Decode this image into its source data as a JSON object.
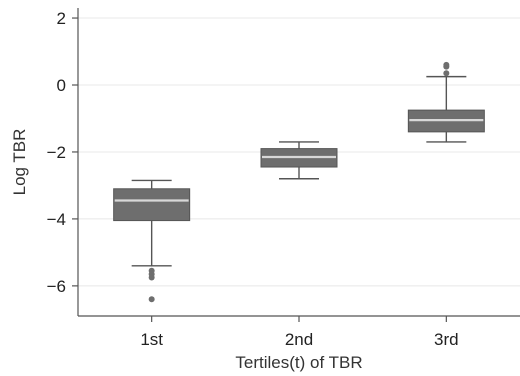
{
  "chart_data": {
    "type": "box",
    "xlabel": "Tertiles(t) of TBR",
    "ylabel": "Log TBR",
    "ylim": [
      -6.9,
      2.3
    ],
    "yticks": [
      2,
      0,
      -2,
      -4,
      -6
    ],
    "ytick_labels": [
      "2",
      "0",
      "−2",
      "−4",
      "−6"
    ],
    "grid": true,
    "categories": [
      "1st",
      "2nd",
      "3rd"
    ],
    "box_color": "#6e6e6e",
    "median_color": "#d8d8d8",
    "boxes": [
      {
        "category": "1st",
        "whisker_low": -5.4,
        "q1": -4.05,
        "median": -3.45,
        "q3": -3.1,
        "whisker_high": -2.85,
        "outliers": [
          -5.55,
          -5.65,
          -5.75,
          -6.4
        ]
      },
      {
        "category": "2nd",
        "whisker_low": -2.8,
        "q1": -2.45,
        "median": -2.15,
        "q3": -1.9,
        "whisker_high": -1.7,
        "outliers": []
      },
      {
        "category": "3rd",
        "whisker_low": -1.7,
        "q1": -1.4,
        "median": -1.05,
        "q3": -0.75,
        "whisker_high": 0.25,
        "outliers": [
          0.35,
          0.55,
          0.6
        ]
      }
    ]
  }
}
